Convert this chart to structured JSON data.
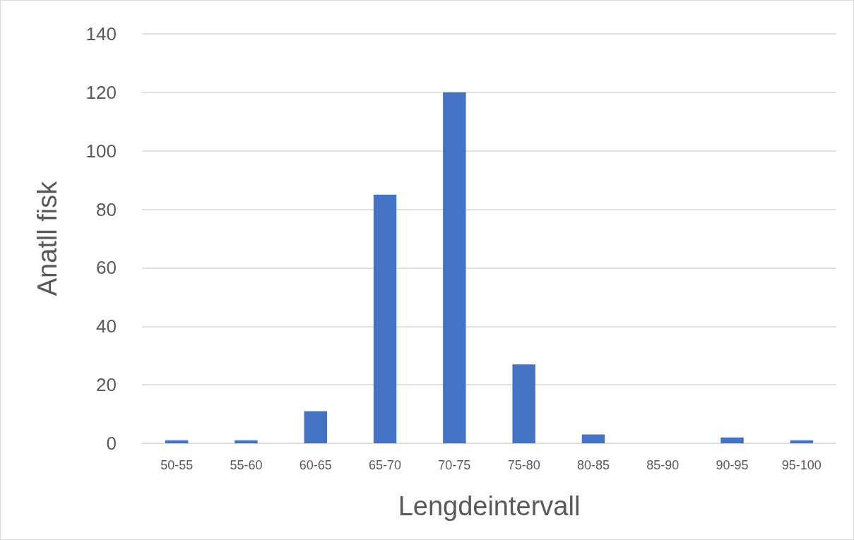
{
  "chart_data": {
    "type": "bar",
    "xlabel": "Lengdeintervall",
    "ylabel": "Anatll fisk",
    "categories": [
      "50-55",
      "55-60",
      "60-65",
      "65-70",
      "70-75",
      "75-80",
      "80-85",
      "85-90",
      "90-95",
      "95-100"
    ],
    "values": [
      1,
      1,
      11,
      85,
      120,
      27,
      3,
      0,
      2,
      1
    ],
    "color": "#4472c4",
    "ylim": [
      0,
      140
    ],
    "yticks": [
      0,
      20,
      40,
      60,
      80,
      100,
      120,
      140
    ],
    "grid": "y"
  }
}
